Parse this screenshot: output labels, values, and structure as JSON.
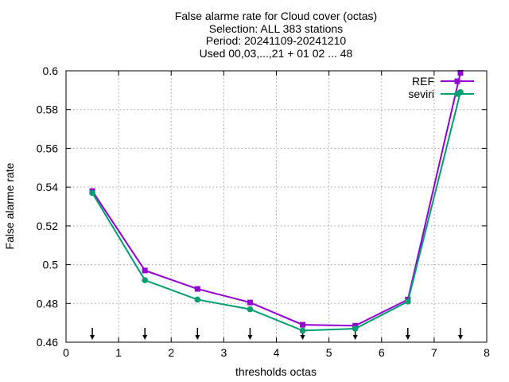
{
  "chart_data": {
    "type": "line",
    "title_lines": [
      "False alarme rate  for Cloud cover (octas)",
      "Selection: ALL    383 stations",
      "Period: 20241109-20241210",
      "Used 00,03,...,21 + 01 02 ... 48"
    ],
    "xlabel": "thresholds octas",
    "ylabel": "False alarme rate",
    "xlim": [
      0,
      8
    ],
    "ylim": [
      0.46,
      0.6
    ],
    "x_ticks": [
      0,
      1,
      2,
      3,
      4,
      5,
      6,
      7,
      8
    ],
    "y_ticks": [
      0.46,
      0.48,
      0.5,
      0.52,
      0.54,
      0.56,
      0.58,
      0.6
    ],
    "grid": true,
    "legend_position": "top-right",
    "x": [
      0.5,
      1.5,
      2.5,
      3.5,
      4.5,
      5.5,
      6.5,
      7.5
    ],
    "series": [
      {
        "name": "REF",
        "color": "#9400d3",
        "values": [
          0.538,
          0.497,
          0.4875,
          0.4805,
          0.469,
          0.4685,
          0.482,
          0.599
        ]
      },
      {
        "name": "seviri",
        "color": "#009e73",
        "values": [
          0.537,
          0.492,
          0.482,
          0.477,
          0.466,
          0.467,
          0.481,
          0.589
        ]
      }
    ],
    "arrow_markers_x": [
      0.5,
      1.5,
      2.5,
      3.5,
      4.5,
      5.5,
      6.5,
      7.5
    ]
  }
}
